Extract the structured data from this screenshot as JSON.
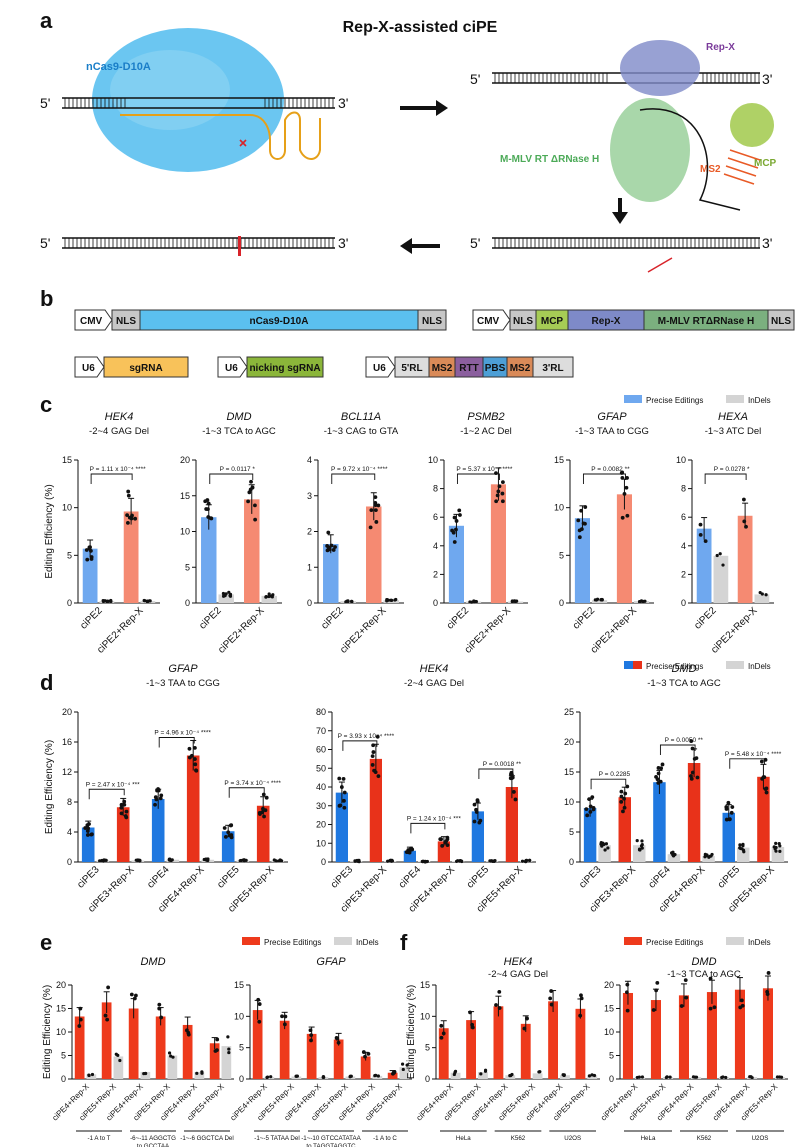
{
  "figure": {
    "panel_labels": {
      "a": "a",
      "b": "b",
      "c": "c",
      "d": "d",
      "e": "e",
      "f": "f"
    },
    "title": "Rep-X-assisted ciPE",
    "panel_a": {
      "cas_label": "nCas9-D10A",
      "repx_label": "Rep-X",
      "rt_label": "M-MLV RT ΔRNase H",
      "ms2_label": "MS2",
      "mcp_label": "MCP",
      "five": "5'",
      "three": "3'"
    },
    "panel_b": {
      "c1": {
        "cmv": "CMV",
        "nls1": "NLS",
        "cas": "nCas9-D10A",
        "nls2": "NLS"
      },
      "c2": {
        "cmv": "CMV",
        "nls1": "NLS",
        "mcp": "MCP",
        "repx": "Rep-X",
        "rt": "M-MLV RTΔRNase H",
        "nls2": "NLS"
      },
      "c3": {
        "u6": "U6",
        "sg": "sgRNA"
      },
      "c4": {
        "u6": "U6",
        "nick": "nicking sgRNA"
      },
      "c5": {
        "u6": "U6",
        "rl5": "5'RL",
        "ms2a": "MS2",
        "rtt": "RTT",
        "pbs": "PBS",
        "ms2b": "MS2",
        "rl3": "3'RL"
      }
    },
    "colors": {
      "blue": "#6fa8ef",
      "salmon": "#f58a72",
      "grey": "#d4d4d4",
      "blue_d": "#1f78e0",
      "red_d": "#e8321a",
      "orange": "#ff6a3d",
      "red_e": "#ee3a1c",
      "cas": "#5bc0ef",
      "repx": "#7e8ac8",
      "rt": "#8cc98e",
      "ms2": "#e85a26",
      "mcp": "#a6cc55",
      "pbs": "#4d9fd6",
      "rtt": "#8b5f9e",
      "sg": "#f8c25a",
      "nick": "#8bb63a",
      "rl": "#ddd",
      "nls": "#c7c7c7"
    }
  },
  "chart_data": [
    {
      "id": "c_hek4",
      "type": "bar",
      "panel": "c",
      "title": "HEK4",
      "subtitle": "-2~4 GAG Del",
      "ylabel": "Editing Efficiency (%)",
      "ylim": [
        0,
        15
      ],
      "yticks": [
        0,
        5,
        10,
        15
      ],
      "categories": [
        "ciPE2",
        "ciPE2+Rep-X"
      ],
      "series": [
        {
          "name": "Precise Editings",
          "values": [
            5.7,
            9.6
          ]
        },
        {
          "name": "InDels",
          "values": [
            0.2,
            0.2
          ]
        }
      ],
      "pvalues": [
        {
          "text": "P = 1.11 x 10⁻⁴ ****"
        }
      ]
    },
    {
      "id": "c_dmd",
      "type": "bar",
      "panel": "c",
      "title": "DMD",
      "subtitle": "-1~3 TCA to AGC",
      "ylim": [
        0,
        20
      ],
      "yticks": [
        0,
        5,
        10,
        15,
        20
      ],
      "categories": [
        "ciPE2",
        "ciPE2+Rep-X"
      ],
      "series": [
        {
          "name": "Precise Editings",
          "values": [
            12.0,
            14.5
          ]
        },
        {
          "name": "InDels",
          "values": [
            1.2,
            1.0
          ]
        }
      ],
      "pvalues": [
        {
          "text": "P = 0.0117 *"
        }
      ]
    },
    {
      "id": "c_bcl",
      "type": "bar",
      "panel": "c",
      "title": "BCL11A",
      "subtitle": "-1~3 CAG to GTA",
      "ylim": [
        0,
        4
      ],
      "yticks": [
        0,
        1,
        2,
        3,
        4
      ],
      "categories": [
        "ciPE2",
        "ciPE2+Rep-X"
      ],
      "series": [
        {
          "name": "Precise Editings",
          "values": [
            1.65,
            2.7
          ]
        },
        {
          "name": "InDels",
          "values": [
            0.05,
            0.08
          ]
        }
      ],
      "pvalues": [
        {
          "text": "P = 9.72 x 10⁻⁴ ****"
        }
      ]
    },
    {
      "id": "c_psmb2",
      "type": "bar",
      "panel": "c",
      "title": "PSMB2",
      "subtitle": "-1~2 AC Del",
      "ylim": [
        0,
        10
      ],
      "yticks": [
        0,
        2,
        4,
        6,
        8,
        10
      ],
      "categories": [
        "ciPE2",
        "ciPE2+Rep-X"
      ],
      "series": [
        {
          "name": "Precise Editings",
          "values": [
            5.4,
            8.3
          ]
        },
        {
          "name": "InDels",
          "values": [
            0.1,
            0.1
          ]
        }
      ],
      "pvalues": [
        {
          "text": "P = 5.37 x 10⁻⁷ ****"
        }
      ]
    },
    {
      "id": "c_gfap",
      "type": "bar",
      "panel": "c",
      "title": "GFAP",
      "subtitle": "-1~3 TAA to CGG",
      "ylim": [
        0,
        15
      ],
      "yticks": [
        0,
        5,
        10,
        15
      ],
      "categories": [
        "ciPE2",
        "ciPE2+Rep-X"
      ],
      "series": [
        {
          "name": "Precise Editings",
          "values": [
            8.9,
            11.4
          ]
        },
        {
          "name": "InDels",
          "values": [
            0.3,
            0.2
          ]
        }
      ],
      "pvalues": [
        {
          "text": "P = 0.0082 **"
        }
      ]
    },
    {
      "id": "c_hexa",
      "type": "bar",
      "panel": "c",
      "title": "HEXA",
      "subtitle": "-1~3 ATC Del",
      "ylim": [
        0,
        10
      ],
      "yticks": [
        0,
        2,
        4,
        6,
        8,
        10
      ],
      "categories": [
        "ciPE2",
        "ciPE2+Rep-X"
      ],
      "series": [
        {
          "name": "Precise Editings",
          "values": [
            5.2,
            6.1
          ]
        },
        {
          "name": "InDels",
          "values": [
            3.3,
            0.6
          ]
        }
      ],
      "pvalues": [
        {
          "text": "P = 0.0278 *"
        }
      ]
    },
    {
      "id": "d_gfap",
      "type": "bar",
      "panel": "d",
      "title": "GFAP",
      "subtitle": "-1~3 TAA to CGG",
      "ylabel": "Editing Efficiency (%)",
      "ylim": [
        0,
        20
      ],
      "yticks": [
        0,
        4,
        8,
        12,
        16,
        20
      ],
      "categories": [
        "ciPE3",
        "ciPE3+Rep-X",
        "ciPE4",
        "ciPE4+Rep-X",
        "ciPE5",
        "ciPE5+Rep-X"
      ],
      "series": [
        {
          "name": "Precise Editings",
          "values": [
            4.6,
            7.3,
            8.4,
            14.2,
            4.1,
            7.5
          ]
        },
        {
          "name": "InDels",
          "values": [
            0.2,
            0.2,
            0.3,
            0.3,
            0.2,
            0.2
          ]
        }
      ],
      "pvalues": [
        {
          "text": "P = 2.47 x 10⁻⁴ ***"
        },
        {
          "text": "P = 4.96 x 10⁻⁴ ****"
        },
        {
          "text": "P = 3.74 x 10⁻⁴ ****"
        }
      ]
    },
    {
      "id": "d_hek4",
      "type": "bar",
      "panel": "d",
      "title": "HEK4",
      "subtitle": "-2~4 GAG Del",
      "ylim": [
        0,
        80
      ],
      "yticks": [
        0,
        10,
        20,
        30,
        40,
        50,
        60,
        70,
        80
      ],
      "categories": [
        "ciPE3",
        "ciPE3+Rep-X",
        "ciPE4",
        "ciPE4+Rep-X",
        "ciPE5",
        "ciPE5+Rep-X"
      ],
      "series": [
        {
          "name": "Precise Editings",
          "values": [
            37,
            55,
            6,
            11,
            27,
            40
          ]
        },
        {
          "name": "InDels",
          "values": [
            0.5,
            0.5,
            0.3,
            0.4,
            0.5,
            0.5
          ]
        }
      ],
      "pvalues": [
        {
          "text": "P = 3.93 x 10⁻⁴ ****"
        },
        {
          "text": "P = 1.24 x 10⁻⁴ ***"
        },
        {
          "text": "P = 0.0018 **"
        }
      ]
    },
    {
      "id": "d_dmd",
      "type": "bar",
      "panel": "d",
      "title": "DMD",
      "subtitle": "-1~3 TCA to AGC",
      "ylim": [
        0,
        25
      ],
      "yticks": [
        0,
        5,
        10,
        15,
        20,
        25
      ],
      "categories": [
        "ciPE3",
        "ciPE3+Rep-X",
        "ciPE4",
        "ciPE4+Rep-X",
        "ciPE5",
        "ciPE5+Rep-X"
      ],
      "series": [
        {
          "name": "Precise Editings",
          "values": [
            9,
            10.8,
            13.3,
            16.5,
            8.2,
            14.2
          ]
        },
        {
          "name": "InDels",
          "values": [
            2.8,
            2.8,
            1.3,
            1,
            2.4,
            2.5
          ]
        }
      ],
      "pvalues": [
        {
          "text": "P = 0.2285"
        },
        {
          "text": "P = 0.0050 **"
        },
        {
          "text": "P = 5.48 x 10⁻⁴ ****"
        }
      ]
    },
    {
      "id": "e_dmd",
      "type": "bar",
      "panel": "e",
      "title": "DMD",
      "ylabel": "Editing Efficiency (%)",
      "ylim": [
        0,
        20
      ],
      "yticks": [
        0,
        5,
        10,
        15,
        20
      ],
      "categories": [
        "ciPE4+Rep-X",
        "ciPE5+Rep-X",
        "ciPE4+Rep-X",
        "ciPE5+Rep-X",
        "ciPE4+Rep-X",
        "ciPE5+Rep-X"
      ],
      "series": [
        {
          "name": "Precise Editings",
          "values": [
            13.3,
            16.3,
            15,
            13.3,
            11.5,
            7.6
          ]
        },
        {
          "name": "InDels",
          "values": [
            1,
            4.8,
            1.5,
            5,
            1.5,
            7
          ]
        }
      ],
      "groups": [
        "-1 A to T",
        "-6~-11 AGGCTG to GCCTAA",
        "-1~-6 GGCTCA Del"
      ]
    },
    {
      "id": "e_gfap",
      "type": "bar",
      "panel": "e",
      "title": "GFAP",
      "ylim": [
        0,
        15
      ],
      "yticks": [
        0,
        5,
        10,
        15
      ],
      "categories": [
        "ciPE4+Rep-X",
        "ciPE5+Rep-X",
        "ciPE4+Rep-X",
        "ciPE5+Rep-X",
        "ciPE4+Rep-X",
        "ciPE5+Rep-X"
      ],
      "series": [
        {
          "name": "Precise Editings",
          "values": [
            11,
            9.3,
            7.2,
            6.3,
            3.6,
            1
          ]
        },
        {
          "name": "InDels",
          "values": [
            0.3,
            0.4,
            0.3,
            0.4,
            0.5,
            1.9
          ]
        }
      ],
      "groups": [
        "-1~-5 TATAA Del",
        "-1~-10 GTCCATATAA to TAGGTAGGTC",
        "-1 A to C"
      ]
    },
    {
      "id": "f_hek4",
      "type": "bar",
      "panel": "f",
      "title": "HEK4",
      "subtitle": "-2~4 GAG Del",
      "ylabel": "Editing Efficiency (%)",
      "ylim": [
        0,
        15
      ],
      "yticks": [
        0,
        5,
        10,
        15
      ],
      "categories": [
        "ciPE4+Rep-X",
        "ciPE5+Rep-X",
        "ciPE4+Rep-X",
        "ciPE5+Rep-X",
        "ciPE4+Rep-X",
        "ciPE5+Rep-X"
      ],
      "series": [
        {
          "name": "Precise Editings",
          "values": [
            8.1,
            9.4,
            11.6,
            8.8,
            12.4,
            11.2
          ]
        },
        {
          "name": "InDels",
          "values": [
            1,
            1.1,
            0.6,
            0.9,
            0.6,
            0.6
          ]
        }
      ],
      "groups": [
        "HeLa",
        "K562",
        "U2OS"
      ]
    },
    {
      "id": "f_dmd",
      "type": "bar",
      "panel": "f",
      "title": "DMD",
      "subtitle": "-1~3 TCA to AGC",
      "ylim": [
        0,
        20
      ],
      "yticks": [
        0,
        5,
        10,
        15,
        20
      ],
      "categories": [
        "ciPE4+Rep-X",
        "ciPE5+Rep-X",
        "ciPE4+Rep-X",
        "ciPE5+Rep-X",
        "ciPE4+Rep-X",
        "ciPE5+Rep-X"
      ],
      "series": [
        {
          "name": "Precise Editings",
          "values": [
            18.3,
            16.8,
            17.8,
            18.5,
            19,
            19.3
          ]
        },
        {
          "name": "InDels",
          "values": [
            0.4,
            0.4,
            0.4,
            0.4,
            0.4,
            0.4
          ]
        }
      ],
      "groups": [
        "HeLa",
        "K562",
        "U2OS"
      ]
    }
  ],
  "legends": {
    "c": {
      "precise": "Precise Editings",
      "indels": "InDels"
    },
    "d": {
      "precise": "Precise Editings",
      "indels": "InDels"
    },
    "e": {
      "precise": "Precise Editings",
      "indels": "InDels"
    },
    "f": {
      "precise": "Precise Editings",
      "indels": "InDels"
    }
  }
}
